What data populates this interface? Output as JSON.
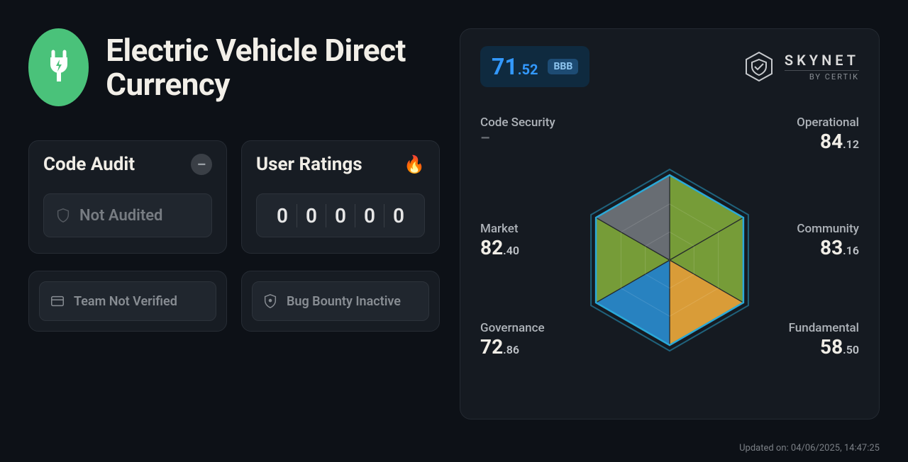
{
  "project": {
    "name": "Electric Vehicle Direct Currency",
    "logo_bg": "#4ac27a"
  },
  "left_cards": {
    "code_audit": {
      "title": "Code Audit",
      "badge_glyph": "–",
      "status_text": "Not Audited"
    },
    "user_ratings": {
      "title": "User Ratings",
      "digits": [
        "0",
        "0",
        "0",
        "0",
        "0"
      ]
    },
    "team": {
      "text": "Team Not Verified"
    },
    "bug_bounty": {
      "text": "Bug Bounty Inactive"
    }
  },
  "score": {
    "int": "71",
    "dec": ".52",
    "rating": "BBB",
    "color": "#3399ff",
    "pill_bg": "#0f2a3f"
  },
  "brand": {
    "name": "SKYNET",
    "sub": "BY CERTIK"
  },
  "radar": {
    "metrics": [
      {
        "key": "code_security",
        "label": "Code Security",
        "int": null,
        "dec": null,
        "pos": "top-left"
      },
      {
        "key": "operational",
        "label": "Operational",
        "int": "84",
        "dec": ".12",
        "pos": "top-right"
      },
      {
        "key": "market",
        "label": "Market",
        "int": "82",
        "dec": ".40",
        "pos": "mid-left"
      },
      {
        "key": "community",
        "label": "Community",
        "int": "83",
        "dec": ".16",
        "pos": "mid-right"
      },
      {
        "key": "governance",
        "label": "Governance",
        "int": "72",
        "dec": ".86",
        "pos": "bot-left"
      },
      {
        "key": "fundamental",
        "label": "Fundamental",
        "int": "58",
        "dec": ".50",
        "pos": "bot-right"
      }
    ],
    "hex": {
      "outline_color": "#2aa9d8",
      "grid_color": "#2a3038",
      "segment_colors": {
        "top_left": "#6d7278",
        "top_right": "#7ca33a",
        "mid_right": "#7ca33a",
        "bot_right": "#e4a43a",
        "bot_left": "#2a88c9",
        "mid_left": "#7ca33a"
      },
      "values_norm": {
        "code_security": 0.0,
        "operational": 0.84,
        "community": 0.83,
        "fundamental": 0.585,
        "governance": 0.73,
        "market": 0.82
      }
    }
  },
  "updated": "Updated on: 04/06/2025, 14:47:25",
  "colors": {
    "page_bg": "#0d1117",
    "card_bg": "#171c23",
    "card_border": "#262c34",
    "pill_bg": "#20262e",
    "pill_border": "#2d333b",
    "text_primary": "#f0ede6",
    "text_muted": "#888d93"
  }
}
